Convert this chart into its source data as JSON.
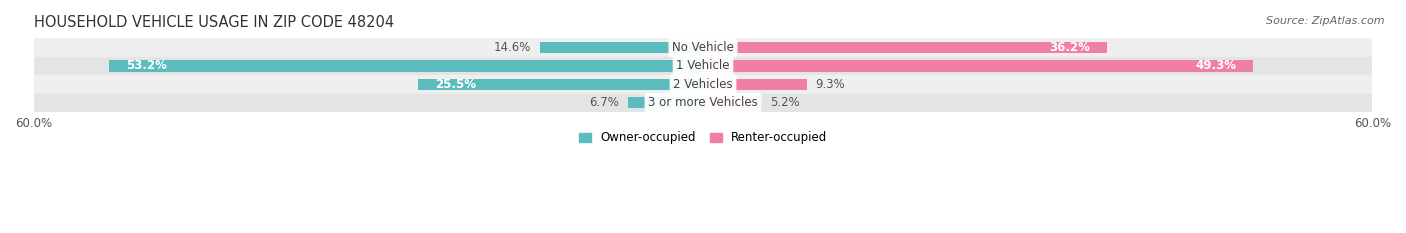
{
  "title": "HOUSEHOLD VEHICLE USAGE IN ZIP CODE 48204",
  "source": "Source: ZipAtlas.com",
  "categories": [
    "No Vehicle",
    "1 Vehicle",
    "2 Vehicles",
    "3 or more Vehicles"
  ],
  "owner_values": [
    14.6,
    53.2,
    25.5,
    6.7
  ],
  "renter_values": [
    36.2,
    49.3,
    9.3,
    5.2
  ],
  "owner_color": "#5bbcbe",
  "renter_color": "#f07fa8",
  "owner_label": "Owner-occupied",
  "renter_label": "Renter-occupied",
  "xlim": [
    -60,
    60
  ],
  "xticklabels": [
    "60.0%",
    "60.0%"
  ],
  "bar_height": 0.62,
  "row_bg_colors": [
    "#efefef",
    "#e4e4e4",
    "#efefef",
    "#e4e4e4"
  ],
  "title_fontsize": 10.5,
  "source_fontsize": 8,
  "label_fontsize": 8.5,
  "tick_fontsize": 8.5,
  "background_color": "#ffffff",
  "fig_width": 14.06,
  "fig_height": 2.33
}
